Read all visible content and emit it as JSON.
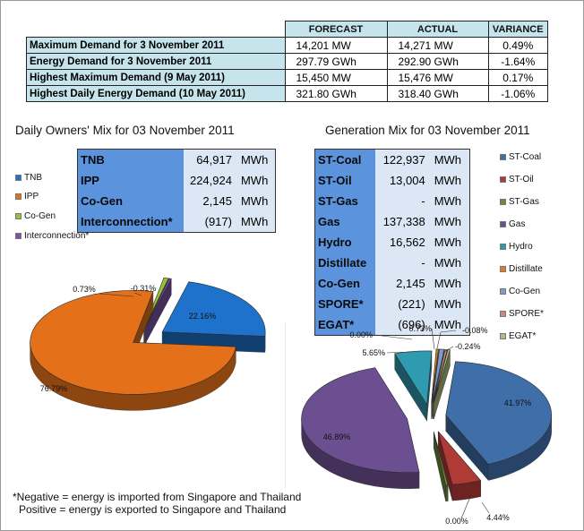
{
  "summary_table": {
    "headers": [
      "FORECAST",
      "ACTUAL",
      "VARIANCE"
    ],
    "rows": [
      {
        "label": "Maximum Demand for 3 November 2011",
        "forecast": "14,201  MW",
        "actual": "14,271  MW",
        "variance": "0.49%"
      },
      {
        "label": "Energy Demand for 3 November 2011",
        "forecast": "297.79  GWh",
        "actual": "292.90  GWh",
        "variance": "-1.64%"
      },
      {
        "label": "Highest Maximum Demand (9 May 2011)",
        "forecast": "15,450  MW",
        "actual": "15,476  MW",
        "variance": "0.17%"
      },
      {
        "label": "Highest Daily Energy Demand (10 May 2011)",
        "forecast": "321.80  GWh",
        "actual": "318.40  GWh",
        "variance": "-1.06%"
      }
    ]
  },
  "owners": {
    "title": "Daily Owners' Mix for 03 November 2011",
    "rows": [
      {
        "label": "TNB",
        "value": "64,917",
        "unit": "MWh"
      },
      {
        "label": "IPP",
        "value": "224,924",
        "unit": "MWh"
      },
      {
        "label": "Co-Gen",
        "value": "2,145",
        "unit": "MWh"
      },
      {
        "label": "Interconnection*",
        "value": "(917)",
        "unit": "MWh"
      }
    ],
    "legend": [
      {
        "label": "TNB",
        "color": "#1f72cc"
      },
      {
        "label": "IPP",
        "color": "#e4711a"
      },
      {
        "label": "Co-Gen",
        "color": "#95c13b"
      },
      {
        "label": "Interconnection*",
        "color": "#7a52a6"
      }
    ]
  },
  "generation": {
    "title": "Generation Mix for 03 November 2011",
    "rows": [
      {
        "label": "ST-Coal",
        "value": "122,937",
        "unit": "MWh"
      },
      {
        "label": "ST-Oil",
        "value": "13,004",
        "unit": "MWh"
      },
      {
        "label": "ST-Gas",
        "value": "-",
        "unit": "MWh"
      },
      {
        "label": "Gas",
        "value": "137,338",
        "unit": "MWh"
      },
      {
        "label": "Hydro",
        "value": "16,562",
        "unit": "MWh"
      },
      {
        "label": "Distillate",
        "value": "-",
        "unit": "MWh"
      },
      {
        "label": "Co-Gen",
        "value": "2,145",
        "unit": "MWh"
      },
      {
        "label": "SPORE*",
        "value": "(221)",
        "unit": "MWh"
      },
      {
        "label": "EGAT*",
        "value": "(696)",
        "unit": "MWh"
      }
    ],
    "legend": [
      {
        "label": "ST-Coal",
        "color": "#3f6ea8"
      },
      {
        "label": "ST-Oil",
        "color": "#b03a36"
      },
      {
        "label": "ST-Gas",
        "color": "#6f8a37"
      },
      {
        "label": "Gas",
        "color": "#6c4f91"
      },
      {
        "label": "Hydro",
        "color": "#2f9bb1"
      },
      {
        "label": "Distillate",
        "color": "#e07c27"
      },
      {
        "label": "Co-Gen",
        "color": "#7d9ccc"
      },
      {
        "label": "SPORE*",
        "color": "#ce8680"
      },
      {
        "label": "EGAT*",
        "color": "#aac07a"
      }
    ]
  },
  "chart_data": [
    {
      "type": "pie",
      "title": "Daily Owners' Mix for 03 November 2011",
      "categories": [
        "TNB",
        "IPP",
        "Co-Gen",
        "Interconnection*"
      ],
      "values": [
        22.16,
        76.79,
        0.73,
        -0.31
      ],
      "labels": [
        "22.16%",
        "76.79%",
        "0.73%",
        "-0.31%"
      ],
      "colors": [
        "#1f72cc",
        "#e4711a",
        "#95c13b",
        "#7a52a6"
      ],
      "legend_position": "left"
    },
    {
      "type": "pie",
      "title": "Generation Mix for 03 November 2011",
      "categories": [
        "ST-Coal",
        "ST-Oil",
        "ST-Gas",
        "Gas",
        "Hydro",
        "Distillate",
        "Co-Gen",
        "SPORE*",
        "EGAT*"
      ],
      "values": [
        41.97,
        4.44,
        0.0,
        46.89,
        5.65,
        0.0,
        0.73,
        -0.08,
        -0.24
      ],
      "labels": [
        "41.97%",
        "4.44%",
        "0.00%",
        "46.89%",
        "5.65%",
        "0.00%",
        "0.73%",
        "-0.08%",
        "-0.24%"
      ],
      "colors": [
        "#3f6ea8",
        "#b03a36",
        "#6f8a37",
        "#6c4f91",
        "#2f9bb1",
        "#e07c27",
        "#7d9ccc",
        "#ce8680",
        "#aac07a"
      ],
      "legend_position": "right"
    }
  ],
  "footnote": {
    "line1": "*Negative = energy is imported from Singapore and Thailand",
    "line2": "Positive = energy is exported to Singapore and Thailand"
  }
}
